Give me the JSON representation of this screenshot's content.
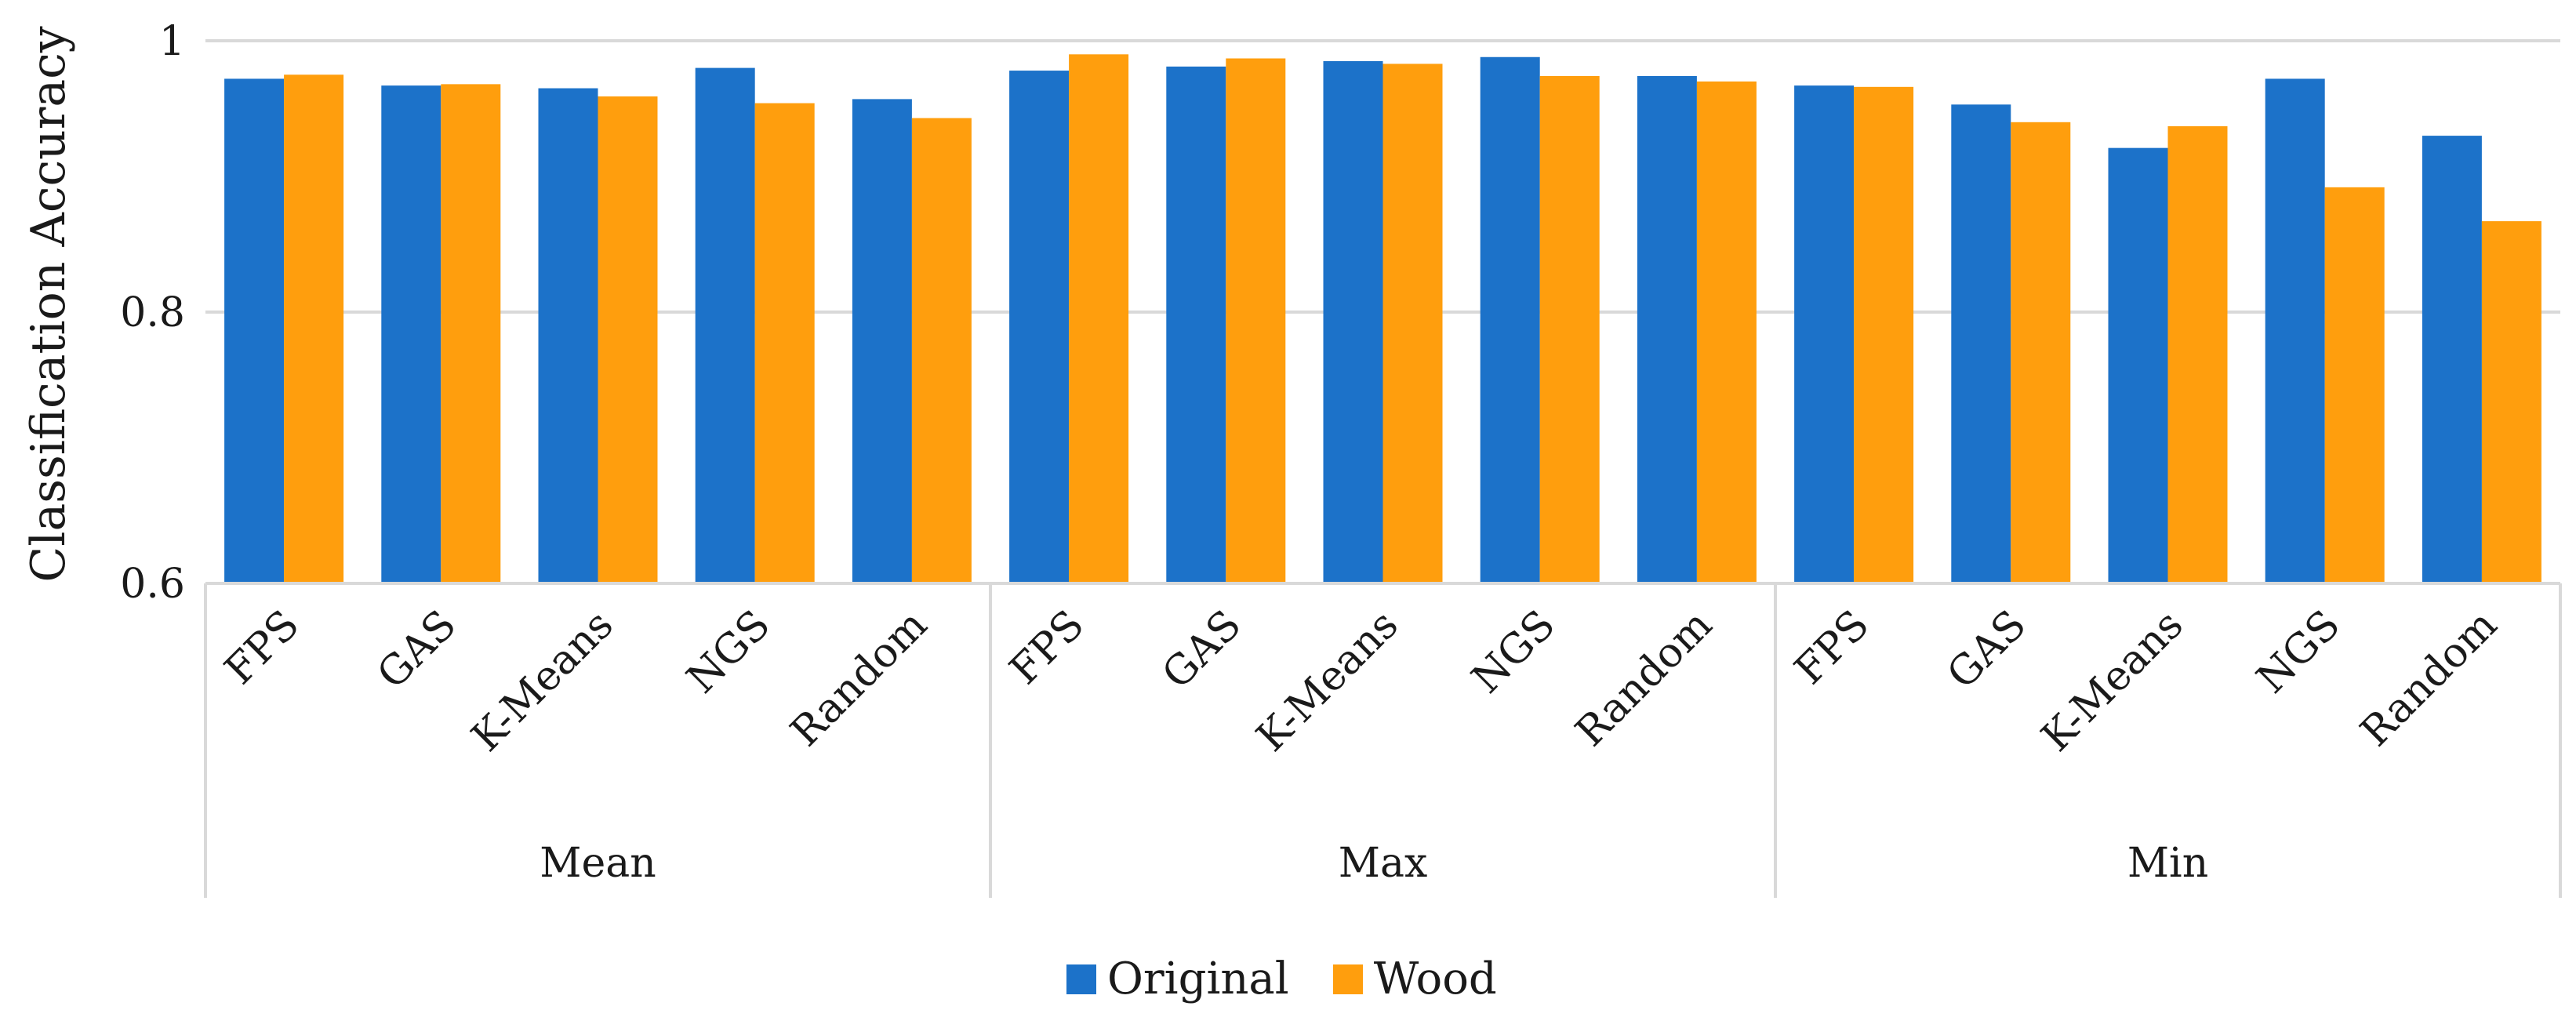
{
  "chart_data": {
    "type": "bar",
    "ylabel": "Classification Accuracy",
    "xlabel": "",
    "ylim": [
      0.6,
      1
    ],
    "y_ticks": [
      "0.6",
      "0.8",
      "1"
    ],
    "grid": true,
    "legend_position": "bottom",
    "groups": [
      {
        "name": "Mean",
        "categories": [
          "FPS",
          "GAS",
          "K-Means",
          "NGS",
          "Random"
        ]
      },
      {
        "name": "Max",
        "categories": [
          "FPS",
          "GAS",
          "K-Means",
          "NGS",
          "Random"
        ]
      },
      {
        "name": "Min",
        "categories": [
          "FPS",
          "GAS",
          "K-Means",
          "NGS",
          "Random"
        ]
      }
    ],
    "series": [
      {
        "name": "Original",
        "color": "#1c72c9",
        "values": [
          0.972,
          0.967,
          0.965,
          0.98,
          0.957,
          0.978,
          0.981,
          0.985,
          0.988,
          0.974,
          0.967,
          0.953,
          0.921,
          0.972,
          0.93
        ]
      },
      {
        "name": "Wood",
        "color": "#ff9e0d",
        "values": [
          0.975,
          0.968,
          0.959,
          0.954,
          0.943,
          0.99,
          0.987,
          0.983,
          0.974,
          0.97,
          0.966,
          0.94,
          0.937,
          0.892,
          0.867
        ]
      }
    ]
  }
}
